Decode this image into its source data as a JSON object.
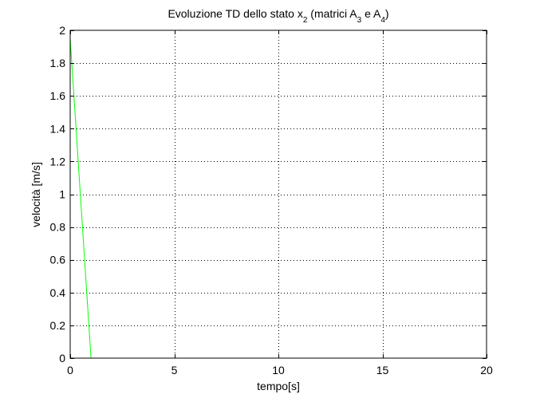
{
  "chart_data": {
    "type": "line",
    "title": {
      "prefix": "Evoluzione TD dello stato x",
      "sub1": "2",
      "middle": " (matrici A",
      "sub2": "3",
      "between": " e A",
      "sub3": "4",
      "suffix": ")"
    },
    "xlabel": "tempo[s]",
    "ylabel": "velocità [m/s]",
    "xlim": [
      0,
      20
    ],
    "ylim": [
      0,
      2
    ],
    "xticks": [
      0,
      5,
      10,
      15,
      20
    ],
    "yticks": [
      0,
      0.2,
      0.4,
      0.6,
      0.8,
      1,
      1.2,
      1.4,
      1.6,
      1.8,
      2
    ],
    "xtick_labels": [
      "0",
      "5",
      "10",
      "15",
      "20"
    ],
    "ytick_labels": [
      "0",
      "0.2",
      "0.4",
      "0.6",
      "0.8",
      "1",
      "1.2",
      "1.4",
      "1.6",
      "1.8",
      "2"
    ],
    "grid": true,
    "series": [
      {
        "color": "#00ff00",
        "x": [
          0,
          1
        ],
        "y": [
          1.95,
          0
        ]
      }
    ]
  }
}
